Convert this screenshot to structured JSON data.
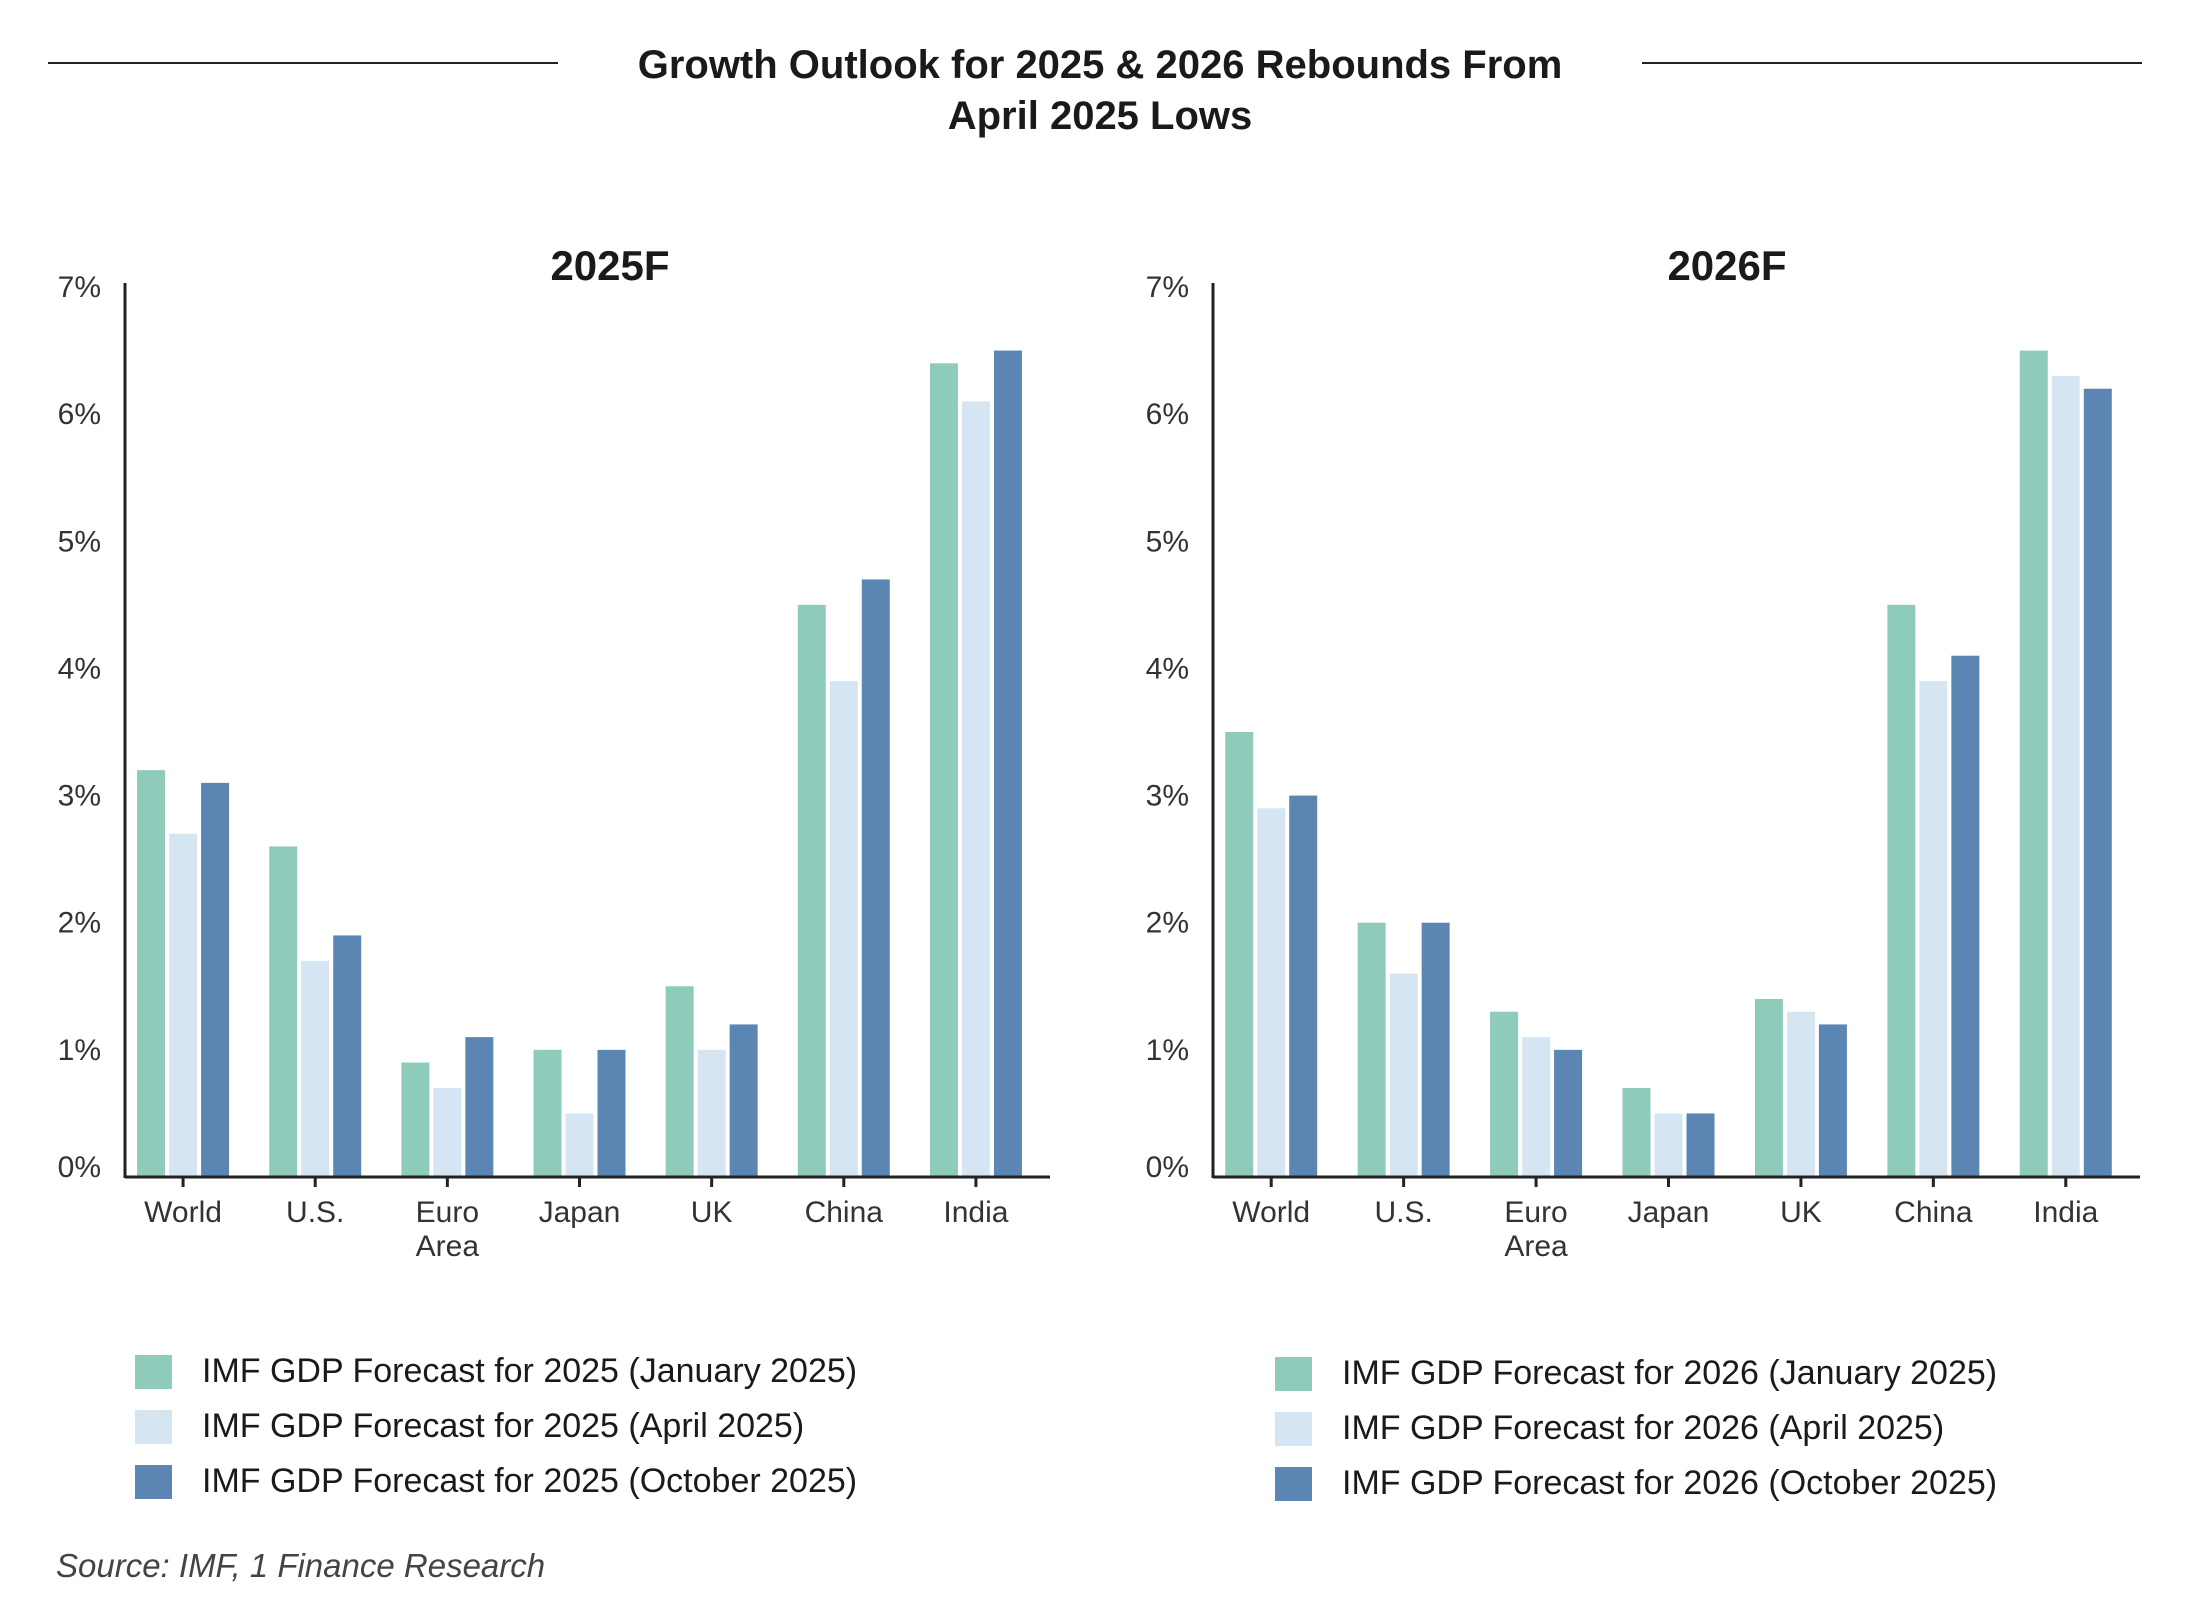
{
  "title_line1": "Growth Outlook for 2025 & 2026 Rebounds From",
  "title_line2": "April 2025 Lows",
  "source": "Source: IMF, 1 Finance Research",
  "colors": {
    "january": "#8fcbbb",
    "april": "#d6e5f2",
    "october": "#5b86b4"
  },
  "chart_data": [
    {
      "type": "bar",
      "title": "2025F",
      "categories": [
        "World",
        "U.S.",
        "Euro Area",
        "Japan",
        "UK",
        "China",
        "India"
      ],
      "category_lines": [
        [
          "World"
        ],
        [
          "U.S."
        ],
        [
          "Euro",
          "Area"
        ],
        [
          "Japan"
        ],
        [
          "UK"
        ],
        [
          "China"
        ],
        [
          "India"
        ]
      ],
      "yticks": [
        "0%",
        "1%",
        "2%",
        "3%",
        "4%",
        "5%",
        "6%",
        "7%"
      ],
      "ylim": [
        0,
        7
      ],
      "xlabel": "",
      "ylabel": "",
      "legend_position": "bottom-left",
      "series": [
        {
          "name": "IMF GDP Forecast for 2025 (January 2025)",
          "color_key": "january",
          "values": [
            3.2,
            2.6,
            0.9,
            1.0,
            1.5,
            4.5,
            6.4
          ]
        },
        {
          "name": "IMF GDP Forecast for 2025 (April 2025)",
          "color_key": "april",
          "values": [
            2.7,
            1.7,
            0.7,
            0.5,
            1.0,
            3.9,
            6.1
          ]
        },
        {
          "name": "IMF GDP Forecast for 2025 (October 2025)",
          "color_key": "october",
          "values": [
            3.1,
            1.9,
            1.1,
            1.0,
            1.2,
            4.7,
            6.5
          ]
        }
      ]
    },
    {
      "type": "bar",
      "title": "2026F",
      "categories": [
        "World",
        "U.S.",
        "Euro Area",
        "Japan",
        "UK",
        "China",
        "India"
      ],
      "category_lines": [
        [
          "World"
        ],
        [
          "U.S."
        ],
        [
          "Euro",
          "Area"
        ],
        [
          "Japan"
        ],
        [
          "UK"
        ],
        [
          "China"
        ],
        [
          "India"
        ]
      ],
      "yticks": [
        "0%",
        "1%",
        "2%",
        "3%",
        "4%",
        "5%",
        "6%",
        "7%"
      ],
      "ylim": [
        0,
        7
      ],
      "xlabel": "",
      "ylabel": "",
      "legend_position": "bottom-right",
      "series": [
        {
          "name": "IMF GDP Forecast for 2026 (January 2025)",
          "color_key": "january",
          "values": [
            3.5,
            2.0,
            1.3,
            0.7,
            1.4,
            4.5,
            6.5
          ]
        },
        {
          "name": "IMF GDP Forecast for 2026 (April 2025)",
          "color_key": "april",
          "values": [
            2.9,
            1.6,
            1.1,
            0.5,
            1.3,
            3.9,
            6.3
          ]
        },
        {
          "name": "IMF GDP Forecast for 2026 (October 2025)",
          "color_key": "october",
          "values": [
            3.0,
            2.0,
            1.0,
            0.5,
            1.2,
            4.1,
            6.2
          ]
        }
      ]
    }
  ]
}
